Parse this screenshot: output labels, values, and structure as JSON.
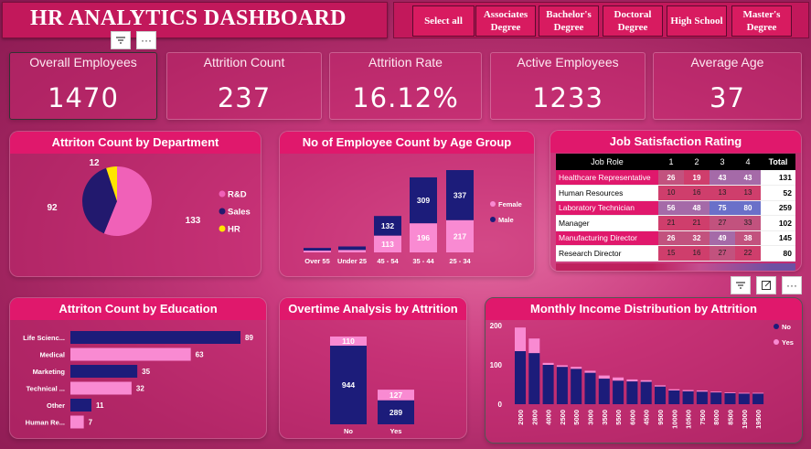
{
  "header": {
    "title": "HR ANALYTICS DASHBOARD"
  },
  "slicer": {
    "buttons": [
      "Select all",
      "Associates Degree",
      "Bachelor's Degree",
      "Doctoral Degree",
      "High School",
      "Master's Degree"
    ]
  },
  "toolbar": {
    "filter_icon": "filter-icon",
    "more_icon": "more-options-icon",
    "focus_icon": "focus-mode-icon"
  },
  "kpis": [
    {
      "label": "Overall Employees",
      "value": "1470"
    },
    {
      "label": "Attrition Count",
      "value": "237"
    },
    {
      "label": "Attrition Rate",
      "value": "16.12%"
    },
    {
      "label": "Active Employees",
      "value": "1233"
    },
    {
      "label": "Average Age",
      "value": "37"
    }
  ],
  "colors": {
    "accent": "#e0186c",
    "pink": "#f061b8",
    "navy": "#1a1a7a",
    "yellow": "#ffe600"
  },
  "panels": {
    "dept": "Attriton Count by Department",
    "age": "No of Employee Count by Age Group",
    "jobsat": "Job Satisfaction Rating",
    "edu": "Attriton Count by Education",
    "overtime": "Overtime Analysis by Attrition",
    "income": "Monthly Income Distribution by Attrition"
  },
  "chart_data": [
    {
      "type": "pie",
      "title": "Attriton Count by Department",
      "categories": [
        "R&D",
        "Sales",
        "HR"
      ],
      "values": [
        133,
        92,
        12
      ],
      "colors": [
        "#f061b8",
        "#22196e",
        "#ffe600"
      ],
      "legend": "right"
    },
    {
      "type": "bar",
      "title": "No of Employee Count by Age Group",
      "stacked": true,
      "categories": [
        "Over 55",
        "Under 25",
        "45 - 54",
        "35 - 44",
        "25 - 34"
      ],
      "series": [
        {
          "name": "Female",
          "values": [
            null,
            null,
            113,
            196,
            217
          ],
          "color": "#f98ad2"
        },
        {
          "name": "Male",
          "values": [
            null,
            null,
            132,
            309,
            337
          ],
          "color": "#1c1c7a"
        }
      ],
      "approx_totals": [
        30,
        40,
        245,
        505,
        554
      ],
      "legend": "right"
    },
    {
      "type": "table",
      "title": "Job Satisfaction Rating",
      "columns": [
        "Job Role",
        "1",
        "2",
        "3",
        "4",
        "Total"
      ],
      "rows": [
        {
          "role": "Healthcare Representative",
          "values": [
            26,
            19,
            43,
            43
          ],
          "total": 131,
          "highlight": true
        },
        {
          "role": "Human Resources",
          "values": [
            10,
            16,
            13,
            13
          ],
          "total": 52,
          "highlight": false
        },
        {
          "role": "Laboratory Technician",
          "values": [
            56,
            48,
            75,
            80
          ],
          "total": 259,
          "highlight": true
        },
        {
          "role": "Manager",
          "values": [
            21,
            21,
            27,
            33
          ],
          "total": 102,
          "highlight": false
        },
        {
          "role": "Manufacturing Director",
          "values": [
            26,
            32,
            49,
            38
          ],
          "total": 145,
          "highlight": true
        },
        {
          "role": "Research Director",
          "values": [
            15,
            16,
            27,
            22
          ],
          "total": 80,
          "highlight": false
        }
      ]
    },
    {
      "type": "bar",
      "orientation": "horizontal",
      "title": "Attriton Count by Education",
      "categories": [
        "Life Scienc...",
        "Medical",
        "Marketing",
        "Technical ...",
        "Other",
        "Human Re..."
      ],
      "values": [
        89,
        63,
        35,
        32,
        11,
        7
      ],
      "colors": [
        "#1c1c7a",
        "#f98ad2",
        "#1c1c7a",
        "#f98ad2",
        "#1c1c7a",
        "#f98ad2"
      ]
    },
    {
      "type": "bar",
      "stacked": true,
      "title": "Overtime Analysis by Attrition",
      "categories": [
        "No",
        "Yes"
      ],
      "series": [
        {
          "name": "No",
          "values": [
            944,
            289
          ],
          "color": "#1c1c7a"
        },
        {
          "name": "Yes",
          "values": [
            110,
            127
          ],
          "color": "#f98ad2"
        }
      ]
    },
    {
      "type": "bar",
      "stacked": true,
      "title": "Monthly Income Distribution by Attrition",
      "categories": [
        "2000",
        "2800",
        "4000",
        "2500",
        "5000",
        "3000",
        "3500",
        "5500",
        "6000",
        "4500",
        "9500",
        "10000",
        "10500",
        "7500",
        "8000",
        "8500",
        "19000",
        "19500"
      ],
      "series": [
        {
          "name": "No",
          "values": [
            135,
            130,
            100,
            95,
            90,
            80,
            65,
            60,
            58,
            57,
            45,
            35,
            33,
            32,
            30,
            28,
            27,
            27
          ],
          "color": "#1c1c7a"
        },
        {
          "name": "Yes",
          "values": [
            60,
            37,
            5,
            4,
            5,
            5,
            8,
            8,
            5,
            4,
            3,
            3,
            3,
            3,
            2,
            2,
            2,
            2
          ],
          "color": "#f98ad2"
        }
      ],
      "ylim": [
        0,
        200
      ],
      "yticks": [
        0,
        100,
        200
      ],
      "legend": "top-right"
    }
  ]
}
